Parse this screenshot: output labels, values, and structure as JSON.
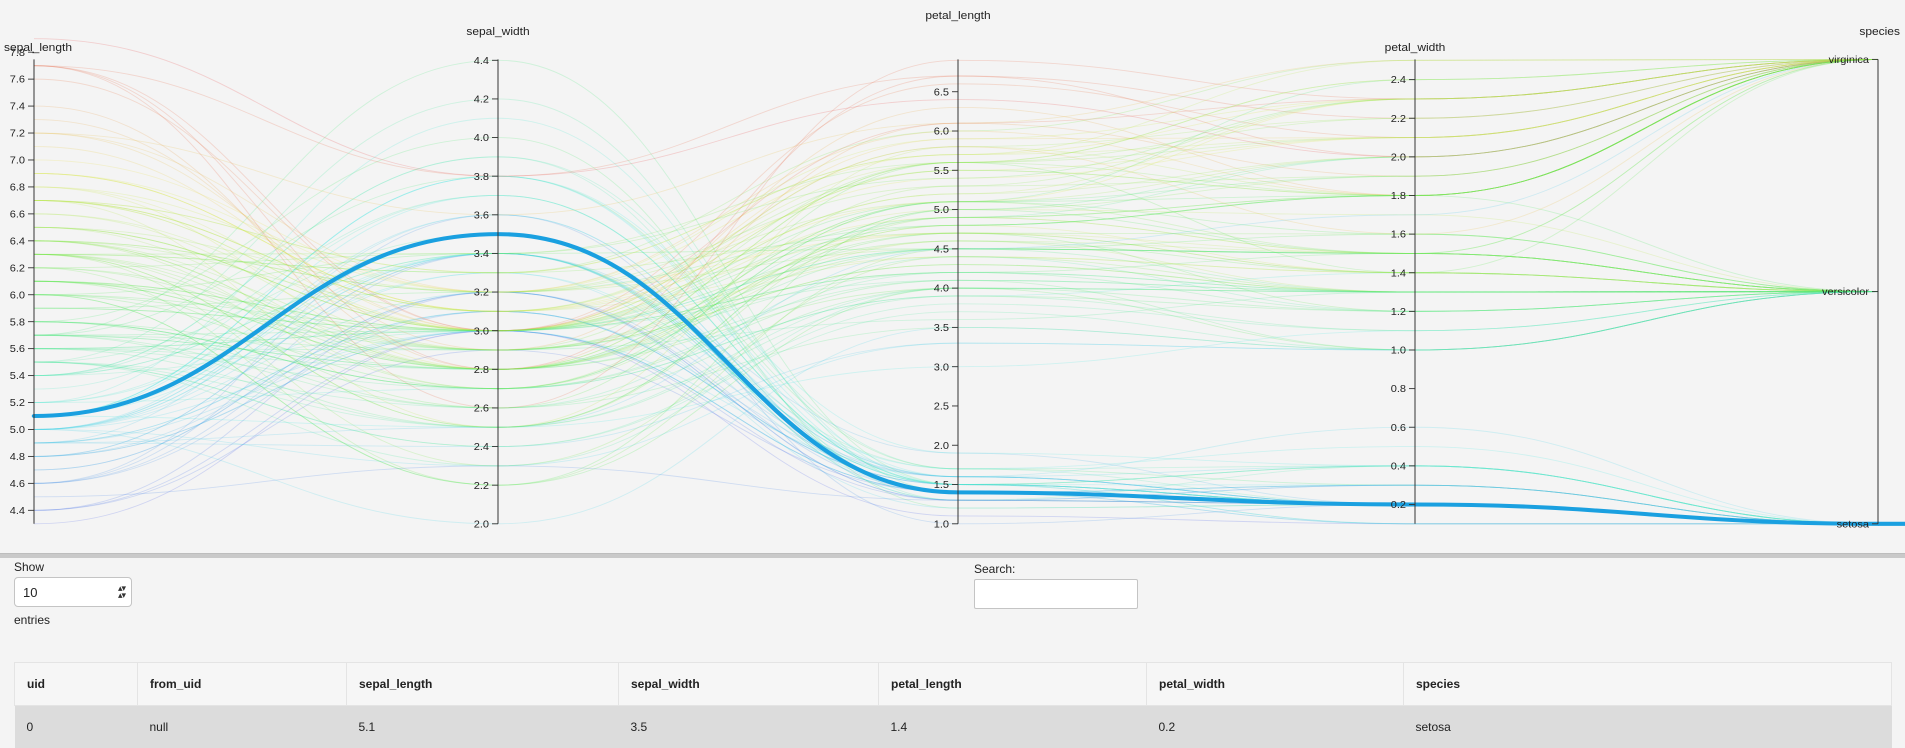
{
  "chart_data": {
    "type": "parallel_coordinates",
    "axes": [
      {
        "name": "sepal_length",
        "label": "sepal_length",
        "range": [
          4.3,
          7.9
        ],
        "ticks": [
          4.4,
          4.6,
          4.8,
          5.0,
          5.2,
          5.4,
          5.6,
          5.8,
          6.0,
          6.2,
          6.4,
          6.6,
          6.8,
          7.0,
          7.2,
          7.4,
          7.6,
          7.8
        ]
      },
      {
        "name": "sepal_width",
        "label": "sepal_width",
        "range": [
          2.0,
          4.4
        ],
        "ticks": [
          2.0,
          2.2,
          2.4,
          2.6,
          2.8,
          3.0,
          3.2,
          3.4,
          3.6,
          3.8,
          4.0,
          4.2,
          4.4
        ]
      },
      {
        "name": "petal_length",
        "label": "petal_length",
        "range": [
          1.0,
          6.9
        ],
        "ticks": [
          1.0,
          1.5,
          2.0,
          2.5,
          3.0,
          3.5,
          4.0,
          4.5,
          5.0,
          5.5,
          6.0,
          6.5
        ]
      },
      {
        "name": "petal_width",
        "label": "petal_width",
        "range": [
          0.1,
          2.5
        ],
        "ticks": [
          0.2,
          0.4,
          0.6,
          0.8,
          1.0,
          1.2,
          1.4,
          1.6,
          1.8,
          2.0,
          2.2,
          2.4
        ]
      },
      {
        "name": "species",
        "label": "species",
        "categorical": true,
        "ticks": [
          "setosa",
          "versicolor",
          "virginica"
        ]
      }
    ],
    "highlighted": [
      5.1,
      3.5,
      1.4,
      0.2,
      "setosa"
    ],
    "highlight_color": "#1aa0e0",
    "background_lines": [
      [
        5.1,
        3.5,
        1.4,
        0.2,
        "setosa"
      ],
      [
        4.9,
        3.0,
        1.4,
        0.2,
        "setosa"
      ],
      [
        4.7,
        3.2,
        1.3,
        0.2,
        "setosa"
      ],
      [
        4.6,
        3.1,
        1.5,
        0.2,
        "setosa"
      ],
      [
        5.0,
        3.6,
        1.4,
        0.2,
        "setosa"
      ],
      [
        5.4,
        3.9,
        1.7,
        0.4,
        "setosa"
      ],
      [
        4.6,
        3.4,
        1.4,
        0.3,
        "setosa"
      ],
      [
        5.0,
        3.4,
        1.5,
        0.2,
        "setosa"
      ],
      [
        4.4,
        2.9,
        1.4,
        0.2,
        "setosa"
      ],
      [
        4.9,
        3.1,
        1.5,
        0.1,
        "setosa"
      ],
      [
        5.4,
        3.7,
        1.5,
        0.2,
        "setosa"
      ],
      [
        4.8,
        3.4,
        1.6,
        0.2,
        "setosa"
      ],
      [
        4.8,
        3.0,
        1.4,
        0.1,
        "setosa"
      ],
      [
        4.3,
        3.0,
        1.1,
        0.1,
        "setosa"
      ],
      [
        5.8,
        4.0,
        1.2,
        0.2,
        "setosa"
      ],
      [
        5.7,
        4.4,
        1.5,
        0.4,
        "setosa"
      ],
      [
        5.4,
        3.9,
        1.3,
        0.4,
        "setosa"
      ],
      [
        5.1,
        3.5,
        1.4,
        0.3,
        "setosa"
      ],
      [
        5.7,
        3.8,
        1.7,
        0.3,
        "setosa"
      ],
      [
        5.1,
        3.8,
        1.5,
        0.3,
        "setosa"
      ],
      [
        5.4,
        3.4,
        1.7,
        0.2,
        "setosa"
      ],
      [
        5.1,
        3.7,
        1.5,
        0.4,
        "setosa"
      ],
      [
        4.6,
        3.6,
        1.0,
        0.2,
        "setosa"
      ],
      [
        5.1,
        3.3,
        1.7,
        0.5,
        "setosa"
      ],
      [
        4.8,
        3.4,
        1.9,
        0.2,
        "setosa"
      ],
      [
        5.0,
        3.0,
        1.6,
        0.2,
        "setosa"
      ],
      [
        5.0,
        3.4,
        1.6,
        0.4,
        "setosa"
      ],
      [
        5.2,
        3.5,
        1.5,
        0.2,
        "setosa"
      ],
      [
        5.2,
        3.4,
        1.4,
        0.2,
        "setosa"
      ],
      [
        4.7,
        3.2,
        1.6,
        0.2,
        "setosa"
      ],
      [
        4.8,
        3.1,
        1.6,
        0.2,
        "setosa"
      ],
      [
        5.4,
        3.4,
        1.5,
        0.4,
        "setosa"
      ],
      [
        5.2,
        4.1,
        1.5,
        0.1,
        "setosa"
      ],
      [
        5.5,
        4.2,
        1.4,
        0.2,
        "setosa"
      ],
      [
        4.9,
        3.1,
        1.5,
        0.2,
        "setosa"
      ],
      [
        5.0,
        3.2,
        1.2,
        0.2,
        "setosa"
      ],
      [
        5.5,
        3.5,
        1.3,
        0.2,
        "setosa"
      ],
      [
        4.9,
        3.6,
        1.4,
        0.1,
        "setosa"
      ],
      [
        4.4,
        3.0,
        1.3,
        0.2,
        "setosa"
      ],
      [
        5.1,
        3.4,
        1.5,
        0.2,
        "setosa"
      ],
      [
        5.0,
        3.5,
        1.3,
        0.3,
        "setosa"
      ],
      [
        4.5,
        2.3,
        1.3,
        0.3,
        "setosa"
      ],
      [
        4.4,
        3.2,
        1.3,
        0.2,
        "setosa"
      ],
      [
        5.0,
        3.5,
        1.6,
        0.6,
        "setosa"
      ],
      [
        5.1,
        3.8,
        1.9,
        0.4,
        "setosa"
      ],
      [
        4.8,
        3.0,
        1.4,
        0.3,
        "setosa"
      ],
      [
        5.1,
        3.8,
        1.6,
        0.2,
        "setosa"
      ],
      [
        4.6,
        3.2,
        1.4,
        0.2,
        "setosa"
      ],
      [
        5.3,
        3.7,
        1.5,
        0.2,
        "setosa"
      ],
      [
        5.0,
        3.3,
        1.4,
        0.2,
        "setosa"
      ],
      [
        7.0,
        3.2,
        4.7,
        1.4,
        "versicolor"
      ],
      [
        6.4,
        3.2,
        4.5,
        1.5,
        "versicolor"
      ],
      [
        6.9,
        3.1,
        4.9,
        1.5,
        "versicolor"
      ],
      [
        5.5,
        2.3,
        4.0,
        1.3,
        "versicolor"
      ],
      [
        6.5,
        2.8,
        4.6,
        1.5,
        "versicolor"
      ],
      [
        5.7,
        2.8,
        4.5,
        1.3,
        "versicolor"
      ],
      [
        6.3,
        3.3,
        4.7,
        1.6,
        "versicolor"
      ],
      [
        4.9,
        2.4,
        3.3,
        1.0,
        "versicolor"
      ],
      [
        6.6,
        2.9,
        4.6,
        1.3,
        "versicolor"
      ],
      [
        5.2,
        2.7,
        3.9,
        1.4,
        "versicolor"
      ],
      [
        5.0,
        2.0,
        3.5,
        1.0,
        "versicolor"
      ],
      [
        5.9,
        3.0,
        4.2,
        1.5,
        "versicolor"
      ],
      [
        6.0,
        2.2,
        4.0,
        1.0,
        "versicolor"
      ],
      [
        6.1,
        2.9,
        4.7,
        1.4,
        "versicolor"
      ],
      [
        5.6,
        2.9,
        3.6,
        1.3,
        "versicolor"
      ],
      [
        6.7,
        3.1,
        4.4,
        1.4,
        "versicolor"
      ],
      [
        5.6,
        3.0,
        4.5,
        1.5,
        "versicolor"
      ],
      [
        5.8,
        2.7,
        4.1,
        1.0,
        "versicolor"
      ],
      [
        6.2,
        2.2,
        4.5,
        1.5,
        "versicolor"
      ],
      [
        5.6,
        2.5,
        3.9,
        1.1,
        "versicolor"
      ],
      [
        5.9,
        3.2,
        4.8,
        1.8,
        "versicolor"
      ],
      [
        6.1,
        2.8,
        4.0,
        1.3,
        "versicolor"
      ],
      [
        6.3,
        2.5,
        4.9,
        1.5,
        "versicolor"
      ],
      [
        6.1,
        2.8,
        4.7,
        1.2,
        "versicolor"
      ],
      [
        6.4,
        2.9,
        4.3,
        1.3,
        "versicolor"
      ],
      [
        6.6,
        3.0,
        4.4,
        1.4,
        "versicolor"
      ],
      [
        6.8,
        2.8,
        4.8,
        1.4,
        "versicolor"
      ],
      [
        6.7,
        3.0,
        5.0,
        1.7,
        "versicolor"
      ],
      [
        6.0,
        2.9,
        4.5,
        1.5,
        "versicolor"
      ],
      [
        5.7,
        2.6,
        3.5,
        1.0,
        "versicolor"
      ],
      [
        5.5,
        2.4,
        3.8,
        1.1,
        "versicolor"
      ],
      [
        5.5,
        2.4,
        3.7,
        1.0,
        "versicolor"
      ],
      [
        5.8,
        2.7,
        3.9,
        1.2,
        "versicolor"
      ],
      [
        6.0,
        2.7,
        5.1,
        1.6,
        "versicolor"
      ],
      [
        5.4,
        3.0,
        4.5,
        1.5,
        "versicolor"
      ],
      [
        6.0,
        3.4,
        4.5,
        1.6,
        "versicolor"
      ],
      [
        6.7,
        3.1,
        4.7,
        1.5,
        "versicolor"
      ],
      [
        6.3,
        2.3,
        4.4,
        1.3,
        "versicolor"
      ],
      [
        5.6,
        3.0,
        4.1,
        1.3,
        "versicolor"
      ],
      [
        5.5,
        2.5,
        4.0,
        1.3,
        "versicolor"
      ],
      [
        5.5,
        2.6,
        4.4,
        1.2,
        "versicolor"
      ],
      [
        6.1,
        3.0,
        4.6,
        1.4,
        "versicolor"
      ],
      [
        5.8,
        2.6,
        4.0,
        1.2,
        "versicolor"
      ],
      [
        5.0,
        2.3,
        3.3,
        1.0,
        "versicolor"
      ],
      [
        5.6,
        2.7,
        4.2,
        1.3,
        "versicolor"
      ],
      [
        5.7,
        3.0,
        4.2,
        1.2,
        "versicolor"
      ],
      [
        5.7,
        2.9,
        4.2,
        1.3,
        "versicolor"
      ],
      [
        6.2,
        2.9,
        4.3,
        1.3,
        "versicolor"
      ],
      [
        5.1,
        2.5,
        3.0,
        1.1,
        "versicolor"
      ],
      [
        5.7,
        2.8,
        4.1,
        1.3,
        "versicolor"
      ],
      [
        6.3,
        3.3,
        6.0,
        2.5,
        "virginica"
      ],
      [
        5.8,
        2.7,
        5.1,
        1.9,
        "virginica"
      ],
      [
        7.1,
        3.0,
        5.9,
        2.1,
        "virginica"
      ],
      [
        6.3,
        2.9,
        5.6,
        1.8,
        "virginica"
      ],
      [
        6.5,
        3.0,
        5.8,
        2.2,
        "virginica"
      ],
      [
        7.6,
        3.0,
        6.6,
        2.1,
        "virginica"
      ],
      [
        4.9,
        2.5,
        4.5,
        1.7,
        "virginica"
      ],
      [
        7.3,
        2.9,
        6.3,
        1.8,
        "virginica"
      ],
      [
        6.7,
        2.5,
        5.8,
        1.8,
        "virginica"
      ],
      [
        7.2,
        3.6,
        6.1,
        2.5,
        "virginica"
      ],
      [
        6.5,
        3.2,
        5.1,
        2.0,
        "virginica"
      ],
      [
        6.4,
        2.7,
        5.3,
        1.9,
        "virginica"
      ],
      [
        6.8,
        3.0,
        5.5,
        2.1,
        "virginica"
      ],
      [
        5.7,
        2.5,
        5.0,
        2.0,
        "virginica"
      ],
      [
        5.8,
        2.8,
        5.1,
        2.4,
        "virginica"
      ],
      [
        6.4,
        3.2,
        5.3,
        2.3,
        "virginica"
      ],
      [
        6.5,
        3.0,
        5.5,
        1.8,
        "virginica"
      ],
      [
        7.7,
        3.8,
        6.7,
        2.2,
        "virginica"
      ],
      [
        7.7,
        2.6,
        6.9,
        2.3,
        "virginica"
      ],
      [
        6.0,
        2.2,
        5.0,
        1.5,
        "virginica"
      ],
      [
        6.9,
        3.2,
        5.7,
        2.3,
        "virginica"
      ],
      [
        5.6,
        2.8,
        4.9,
        2.0,
        "virginica"
      ],
      [
        7.7,
        2.8,
        6.7,
        2.0,
        "virginica"
      ],
      [
        6.3,
        2.7,
        4.9,
        1.8,
        "virginica"
      ],
      [
        6.7,
        3.3,
        5.7,
        2.1,
        "virginica"
      ],
      [
        7.2,
        3.2,
        6.0,
        1.8,
        "virginica"
      ],
      [
        6.2,
        2.8,
        4.8,
        1.8,
        "virginica"
      ],
      [
        6.1,
        3.0,
        4.9,
        1.8,
        "virginica"
      ],
      [
        6.4,
        2.8,
        5.6,
        2.1,
        "virginica"
      ],
      [
        7.2,
        3.0,
        5.8,
        1.6,
        "virginica"
      ],
      [
        7.4,
        2.8,
        6.1,
        1.9,
        "virginica"
      ],
      [
        7.9,
        3.8,
        6.4,
        2.0,
        "virginica"
      ],
      [
        6.4,
        2.8,
        5.6,
        2.2,
        "virginica"
      ],
      [
        6.3,
        2.8,
        5.1,
        1.5,
        "virginica"
      ],
      [
        6.1,
        2.6,
        5.6,
        1.4,
        "virginica"
      ],
      [
        7.7,
        3.0,
        6.1,
        2.3,
        "virginica"
      ],
      [
        6.3,
        3.4,
        5.6,
        2.4,
        "virginica"
      ],
      [
        6.4,
        3.1,
        5.5,
        1.8,
        "virginica"
      ],
      [
        6.0,
        3.0,
        4.8,
        1.8,
        "virginica"
      ],
      [
        6.9,
        3.1,
        5.4,
        2.1,
        "virginica"
      ],
      [
        6.7,
        3.1,
        5.6,
        2.4,
        "virginica"
      ],
      [
        6.9,
        3.1,
        5.1,
        2.3,
        "virginica"
      ],
      [
        6.8,
        3.2,
        5.9,
        2.3,
        "virginica"
      ],
      [
        6.7,
        3.3,
        5.7,
        2.5,
        "virginica"
      ],
      [
        6.7,
        3.0,
        5.2,
        2.3,
        "virginica"
      ],
      [
        6.3,
        2.5,
        5.0,
        1.9,
        "virginica"
      ],
      [
        6.5,
        3.0,
        5.2,
        2.0,
        "virginica"
      ],
      [
        6.2,
        3.4,
        5.4,
        2.3,
        "virginica"
      ],
      [
        5.9,
        3.0,
        5.1,
        1.8,
        "virginica"
      ]
    ]
  },
  "grid": {
    "show_label": "Show",
    "page_size": "10",
    "entries_label": "entries",
    "search_label": "Search:",
    "search_value": "",
    "columns": [
      "uid",
      "from_uid",
      "sepal_length",
      "sepal_width",
      "petal_length",
      "petal_width",
      "species"
    ],
    "rows": [
      [
        "0",
        "null",
        "5.1",
        "3.5",
        "1.4",
        "0.2",
        "setosa"
      ]
    ]
  }
}
